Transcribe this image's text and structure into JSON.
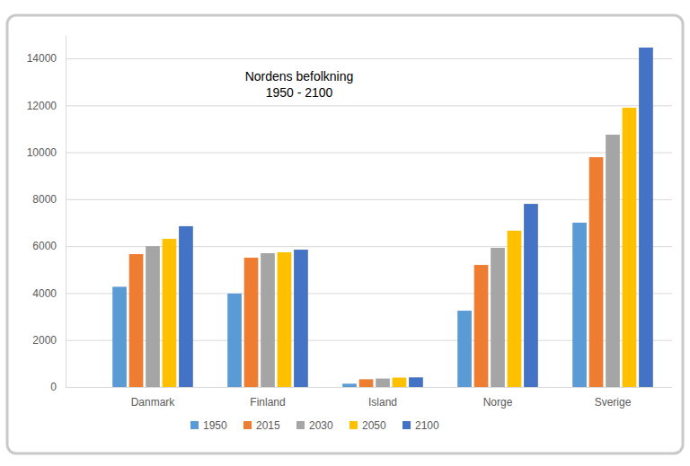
{
  "chart_data": {
    "type": "bar",
    "title": "Nordens befolkning",
    "subtitle": "1950 - 2100",
    "categories": [
      "Danmark",
      "Finland",
      "Island",
      "Norge",
      "Sverige"
    ],
    "series": [
      {
        "name": "1950",
        "color": "#5b9bd5",
        "values": [
          4270,
          3980,
          140,
          3250,
          7000
        ]
      },
      {
        "name": "2015",
        "color": "#ed7d31",
        "values": [
          5660,
          5510,
          330,
          5200,
          9790
        ]
      },
      {
        "name": "2030",
        "color": "#a5a5a5",
        "values": [
          6000,
          5700,
          360,
          5930,
          10750
        ]
      },
      {
        "name": "2050",
        "color": "#ffc000",
        "values": [
          6310,
          5740,
          400,
          6660,
          11900
        ]
      },
      {
        "name": "2100",
        "color": "#4472c4",
        "values": [
          6850,
          5850,
          410,
          7800,
          14460
        ]
      }
    ],
    "ylim": [
      0,
      15000
    ],
    "yticks": [
      0,
      2000,
      4000,
      6000,
      8000,
      10000,
      12000,
      14000
    ],
    "grid": true,
    "legend": "bottom"
  }
}
